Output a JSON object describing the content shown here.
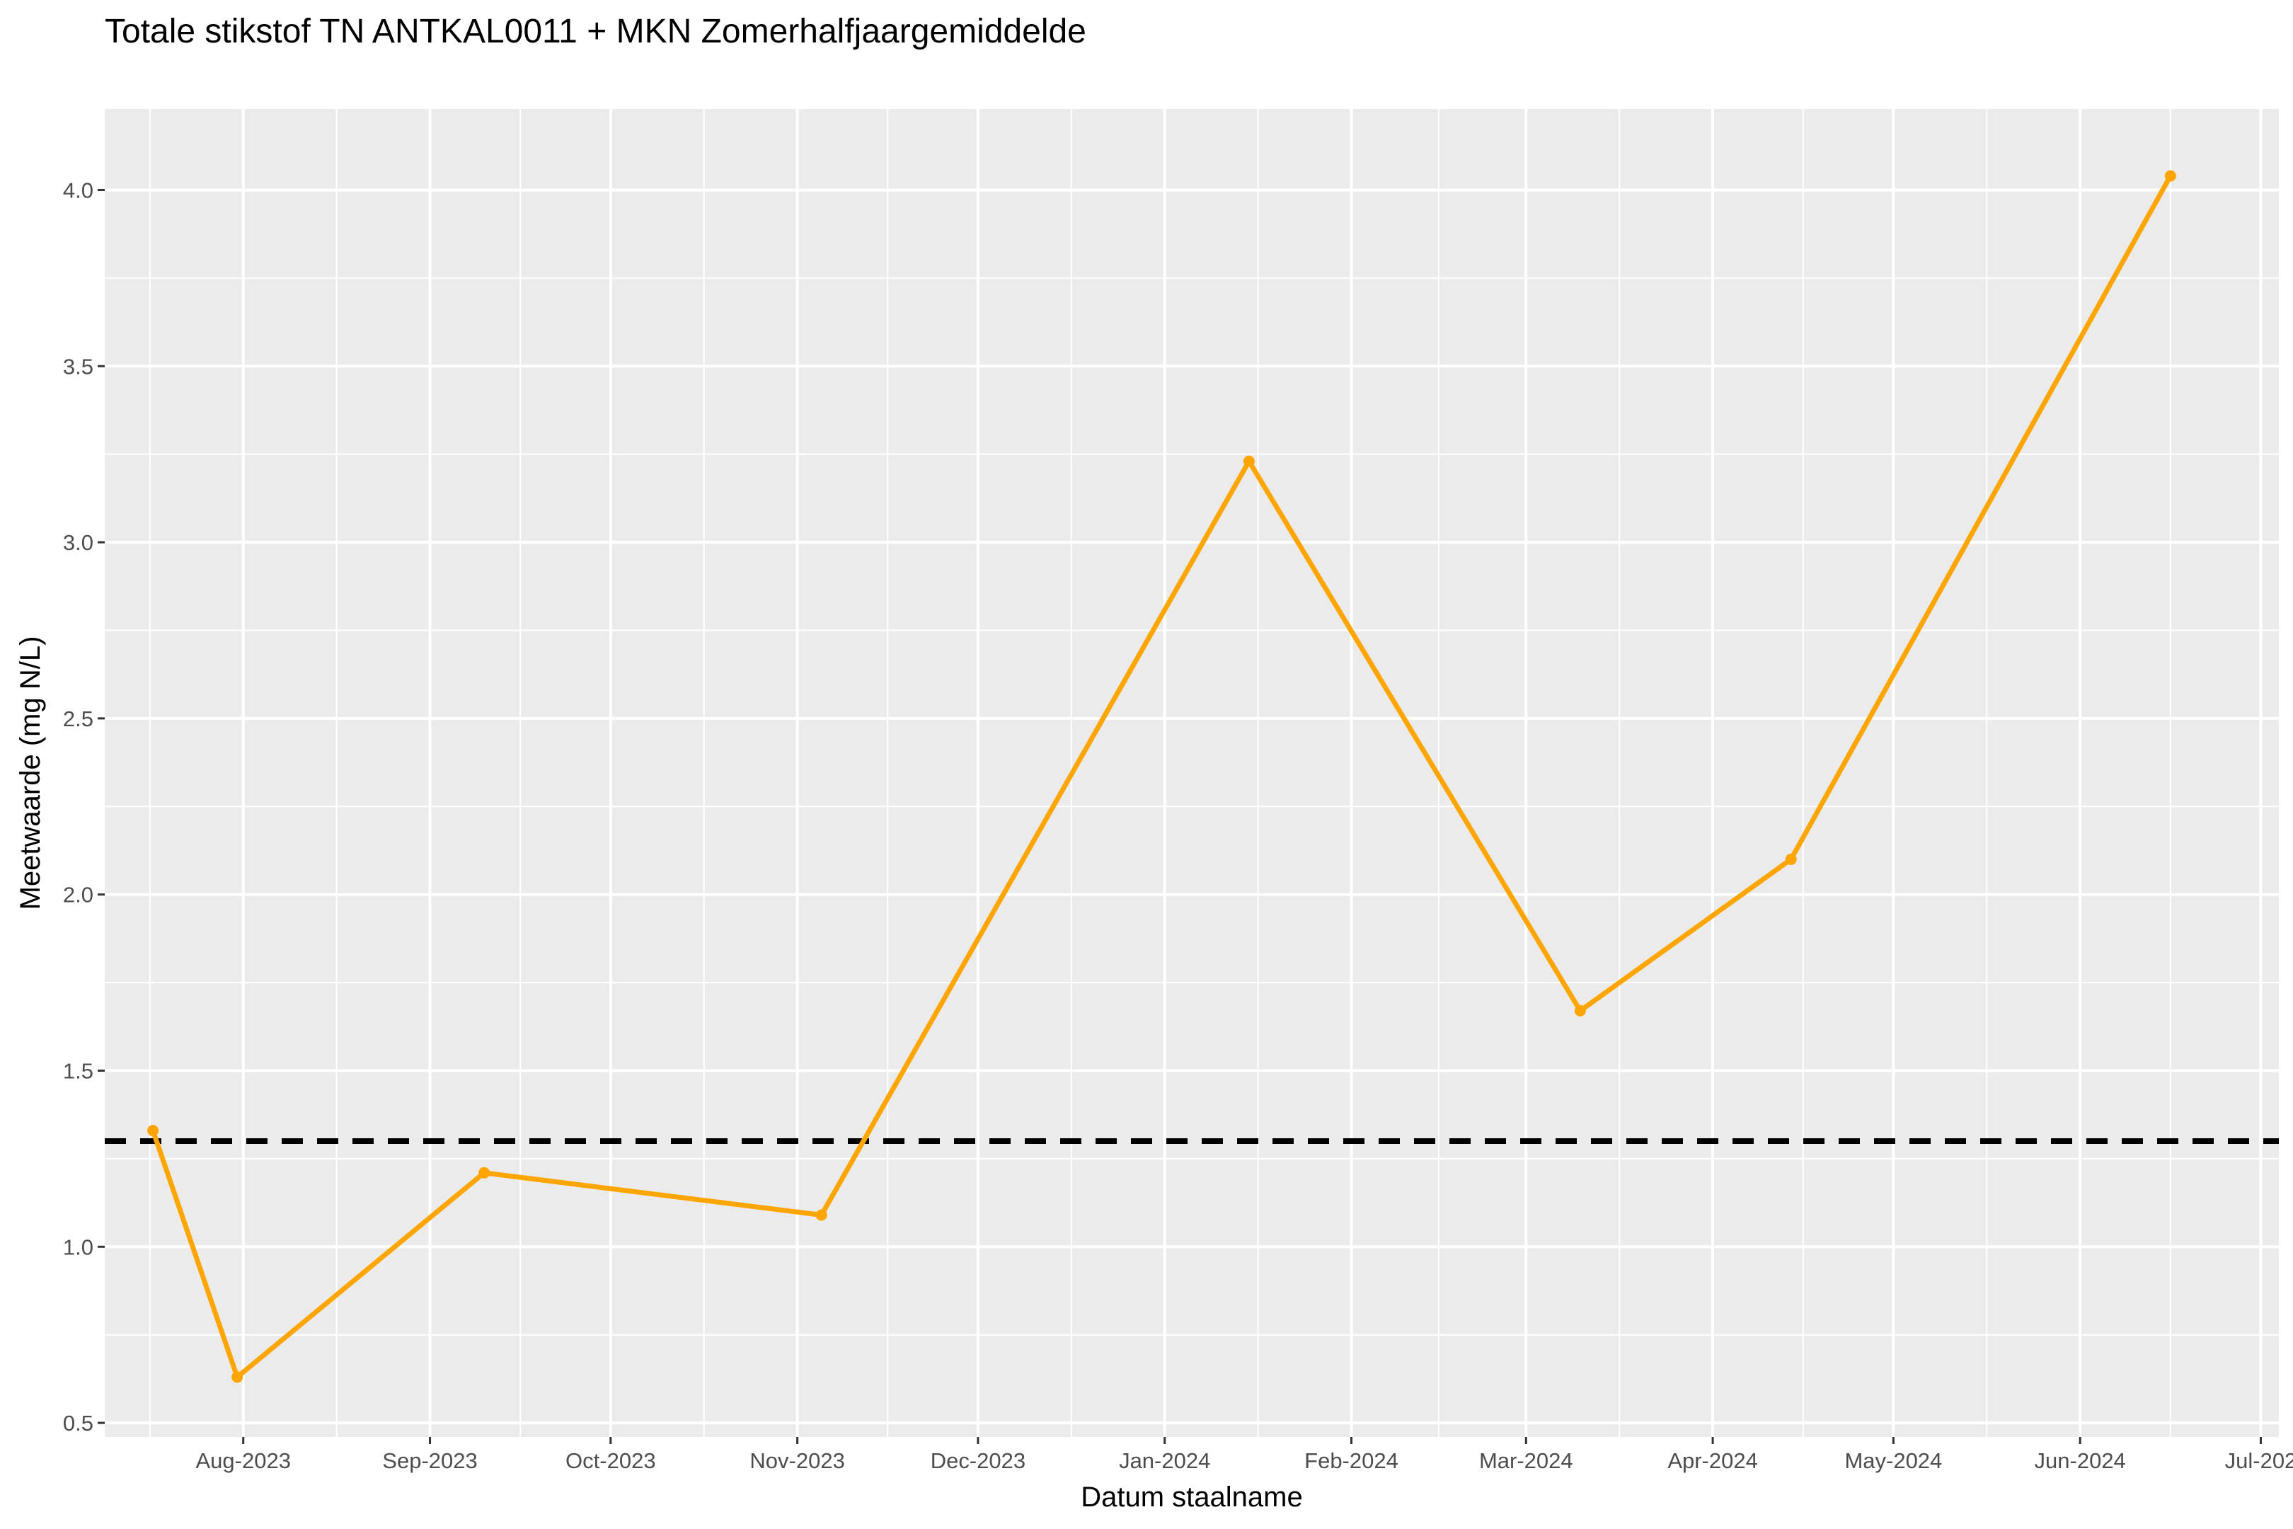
{
  "chart_data": {
    "type": "line",
    "title": "Totale stikstof TN ANTKAL0011 + MKN Zomerhalfjaargemiddelde",
    "xlabel": "Datum staalname",
    "ylabel": "Meetwaarde (mg N/L)",
    "x_tick_labels": [
      "Aug-2023",
      "Sep-2023",
      "Oct-2023",
      "Nov-2023",
      "Dec-2023",
      "Jan-2024",
      "Feb-2024",
      "Mar-2024",
      "Apr-2024",
      "May-2024",
      "Jun-2024",
      "Jul-202"
    ],
    "x_tick_dates": [
      "2023-08-01",
      "2023-09-01",
      "2023-10-01",
      "2023-11-01",
      "2023-12-01",
      "2024-01-01",
      "2024-02-01",
      "2024-03-01",
      "2024-04-01",
      "2024-05-01",
      "2024-06-01",
      "2024-07-01"
    ],
    "y_tick_labels": [
      "0.5",
      "1.0",
      "1.5",
      "2.0",
      "2.5",
      "3.0",
      "3.5",
      "4.0"
    ],
    "xlim": [
      "2023-07-09",
      "2024-07-04"
    ],
    "ylim": [
      0.46,
      4.23
    ],
    "grid": true,
    "series": [
      {
        "color": "#FFA500",
        "points": [
          {
            "x": "2023-07-17",
            "y": 1.33
          },
          {
            "x": "2023-07-31",
            "y": 0.63
          },
          {
            "x": "2023-09-10",
            "y": 1.21
          },
          {
            "x": "2023-11-05",
            "y": 1.09
          },
          {
            "x": "2024-01-15",
            "y": 3.23
          },
          {
            "x": "2024-03-10",
            "y": 1.67
          },
          {
            "x": "2024-04-14",
            "y": 2.1
          },
          {
            "x": "2024-06-16",
            "y": 4.04
          }
        ]
      }
    ],
    "reference_line": {
      "y": 1.3,
      "style": "dashed",
      "color": "#000000"
    }
  },
  "colors": {
    "panel_background": "#EBEBEB",
    "grid_major": "#FFFFFF",
    "line": "#FFA500",
    "reference": "#000000"
  }
}
